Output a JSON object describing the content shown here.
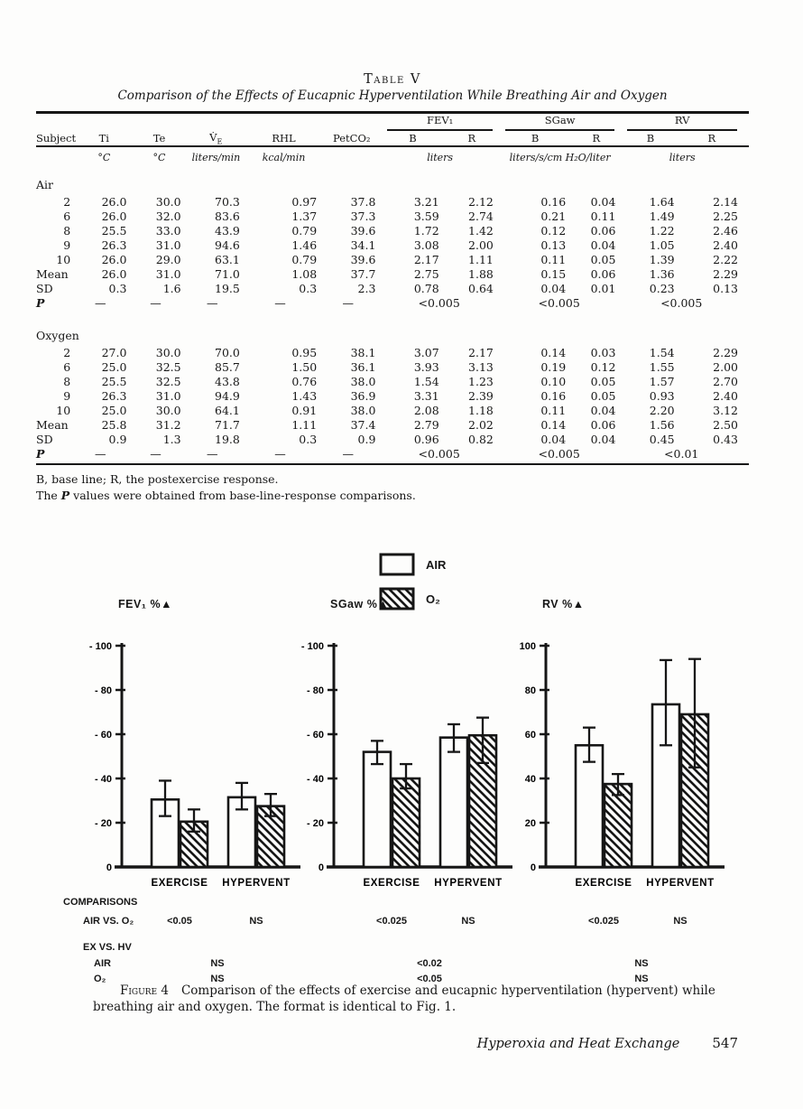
{
  "table": {
    "label": "Table V",
    "title": "Comparison of the Effects of Eucapnic Hyperventilation While Breathing Air and Oxygen",
    "col_headers": {
      "subject": "Subject",
      "ti": "Ti",
      "te": "Te",
      "ve_main": "V̇",
      "ve_sub": "E",
      "rhl": "RHL",
      "petco2": "PetCO₂",
      "b": "B",
      "r": "R"
    },
    "groups": [
      {
        "label": "FEV₁"
      },
      {
        "label": "SGaw"
      },
      {
        "label": "RV"
      }
    ],
    "units": {
      "c1": "°C",
      "c2": "°C",
      "c3": "liters/min",
      "c4": "kcal/min",
      "fev1": "liters",
      "sgaw": "liters/s/cm H₂O/liter",
      "rv": "liters"
    },
    "sections": [
      {
        "name": "Air",
        "rows": [
          [
            "2",
            "26.0",
            "30.0",
            "70.3",
            "0.97",
            "37.8",
            "3.21",
            "2.12",
            "0.16",
            "0.04",
            "1.64",
            "2.14"
          ],
          [
            "6",
            "26.0",
            "32.0",
            "83.6",
            "1.37",
            "37.3",
            "3.59",
            "2.74",
            "0.21",
            "0.11",
            "1.49",
            "2.25"
          ],
          [
            "8",
            "25.5",
            "33.0",
            "43.9",
            "0.79",
            "39.6",
            "1.72",
            "1.42",
            "0.12",
            "0.06",
            "1.22",
            "2.46"
          ],
          [
            "9",
            "26.3",
            "31.0",
            "94.6",
            "1.46",
            "34.1",
            "3.08",
            "2.00",
            "0.13",
            "0.04",
            "1.05",
            "2.40"
          ],
          [
            "10",
            "26.0",
            "29.0",
            "63.1",
            "0.79",
            "39.6",
            "2.17",
            "1.11",
            "0.11",
            "0.05",
            "1.39",
            "2.22"
          ],
          [
            "Mean",
            "26.0",
            "31.0",
            "71.0",
            "1.08",
            "37.7",
            "2.75",
            "1.88",
            "0.15",
            "0.06",
            "1.36",
            "2.29"
          ],
          [
            "SD",
            "0.3",
            "1.6",
            "19.5",
            "0.3",
            "2.3",
            "0.78",
            "0.64",
            "0.04",
            "0.01",
            "0.23",
            "0.13"
          ]
        ],
        "p_label": "P",
        "p_dashes": [
          "—",
          "—",
          "—",
          "—",
          "—"
        ],
        "p_values": [
          "<0.005",
          "<0.005",
          "<0.005"
        ]
      },
      {
        "name": "Oxygen",
        "rows": [
          [
            "2",
            "27.0",
            "30.0",
            "70.0",
            "0.95",
            "38.1",
            "3.07",
            "2.17",
            "0.14",
            "0.03",
            "1.54",
            "2.29"
          ],
          [
            "6",
            "25.0",
            "32.5",
            "85.7",
            "1.50",
            "36.1",
            "3.93",
            "3.13",
            "0.19",
            "0.12",
            "1.55",
            "2.00"
          ],
          [
            "8",
            "25.5",
            "32.5",
            "43.8",
            "0.76",
            "38.0",
            "1.54",
            "1.23",
            "0.10",
            "0.05",
            "1.57",
            "2.70"
          ],
          [
            "9",
            "26.3",
            "31.0",
            "94.9",
            "1.43",
            "36.9",
            "3.31",
            "2.39",
            "0.16",
            "0.05",
            "0.93",
            "2.40"
          ],
          [
            "10",
            "25.0",
            "30.0",
            "64.1",
            "0.91",
            "38.0",
            "2.08",
            "1.18",
            "0.11",
            "0.04",
            "2.20",
            "3.12"
          ],
          [
            "Mean",
            "25.8",
            "31.2",
            "71.7",
            "1.11",
            "37.4",
            "2.79",
            "2.02",
            "0.14",
            "0.06",
            "1.56",
            "2.50"
          ],
          [
            "SD",
            "0.9",
            "1.3",
            "19.8",
            "0.3",
            "0.9",
            "0.96",
            "0.82",
            "0.04",
            "0.04",
            "0.45",
            "0.43"
          ]
        ],
        "p_label": "P",
        "p_dashes": [
          "—",
          "—",
          "—",
          "—",
          "—"
        ],
        "p_values": [
          "<0.005",
          "<0.005",
          "<0.01"
        ]
      }
    ],
    "footnote1": "B, base line; R, the postexercise response.",
    "footnote2_pre": "The ",
    "footnote2_italic": "P",
    "footnote2_post": " values were obtained from base-line-response comparisons."
  },
  "figure": {
    "legend": [
      {
        "label": "AIR",
        "fill": "open"
      },
      {
        "label": "O₂",
        "fill": "hatched"
      }
    ],
    "comparisons": {
      "heading": "COMPARISONS",
      "row1_label": "AIR VS. O₂",
      "row1_values": [
        "<0.05",
        "NS",
        "<0.025",
        "NS",
        "<0.025",
        "NS"
      ],
      "row2_label": "EX VS. HV",
      "air_label": "AIR",
      "air_values": [
        "NS",
        "<0.02",
        "NS"
      ],
      "o2_label": "O₂",
      "o2_values": [
        "NS",
        "<0.05",
        "NS"
      ]
    },
    "caption_label": "Figure 4",
    "caption_text": "Comparison of the effects of exercise and eucapnic hyperventilation (hypervent) while breathing air and oxygen. The format is identical to Fig. 1."
  },
  "chart_data": [
    {
      "type": "bar",
      "title": "FEV₁ %▲",
      "categories": [
        "EXERCISE",
        "HYPERVENT"
      ],
      "ylim": [
        0,
        100
      ],
      "yticks": [
        0,
        20,
        40,
        60,
        80,
        100
      ],
      "ytick_labels": [
        "0",
        "- 20",
        "- 40",
        "- 60",
        "- 80",
        "- 100"
      ],
      "series": [
        {
          "name": "AIR",
          "style": "open",
          "values": [
            30.5,
            31.5
          ],
          "err_low": [
            23,
            26
          ],
          "err_high": [
            39,
            38
          ]
        },
        {
          "name": "O₂",
          "style": "hatched",
          "values": [
            20.5,
            27.5
          ],
          "err_low": [
            16,
            23
          ],
          "err_high": [
            26,
            33
          ]
        }
      ]
    },
    {
      "type": "bar",
      "title": "SGaw %▲",
      "categories": [
        "EXERCISE",
        "HYPERVENT"
      ],
      "ylim": [
        0,
        100
      ],
      "yticks": [
        0,
        20,
        40,
        60,
        80,
        100
      ],
      "ytick_labels": [
        "0",
        "- 20",
        "- 40",
        "- 60",
        "- 80",
        "- 100"
      ],
      "series": [
        {
          "name": "AIR",
          "style": "open",
          "values": [
            52,
            58.5
          ],
          "err_low": [
            46.5,
            52
          ],
          "err_high": [
            57,
            64.5
          ]
        },
        {
          "name": "O₂",
          "style": "hatched",
          "values": [
            40,
            59.5
          ],
          "err_low": [
            35.5,
            47
          ],
          "err_high": [
            46.5,
            67.5
          ]
        }
      ]
    },
    {
      "type": "bar",
      "title": "RV %▲",
      "categories": [
        "EXERCISE",
        "HYPERVENT"
      ],
      "ylim": [
        0,
        100
      ],
      "yticks": [
        0,
        20,
        40,
        60,
        80,
        100
      ],
      "ytick_labels": [
        "0",
        "20",
        "40",
        "60",
        "80",
        "100"
      ],
      "series": [
        {
          "name": "AIR",
          "style": "open",
          "values": [
            55,
            73.5
          ],
          "err_low": [
            47.5,
            55
          ],
          "err_high": [
            63,
            93.5
          ]
        },
        {
          "name": "O₂",
          "style": "hatched",
          "values": [
            37.5,
            69
          ],
          "err_low": [
            32.5,
            45
          ],
          "err_high": [
            42,
            94
          ]
        }
      ]
    }
  ],
  "footer": {
    "title": "Hyperoxia and Heat Exchange",
    "page": "547"
  }
}
